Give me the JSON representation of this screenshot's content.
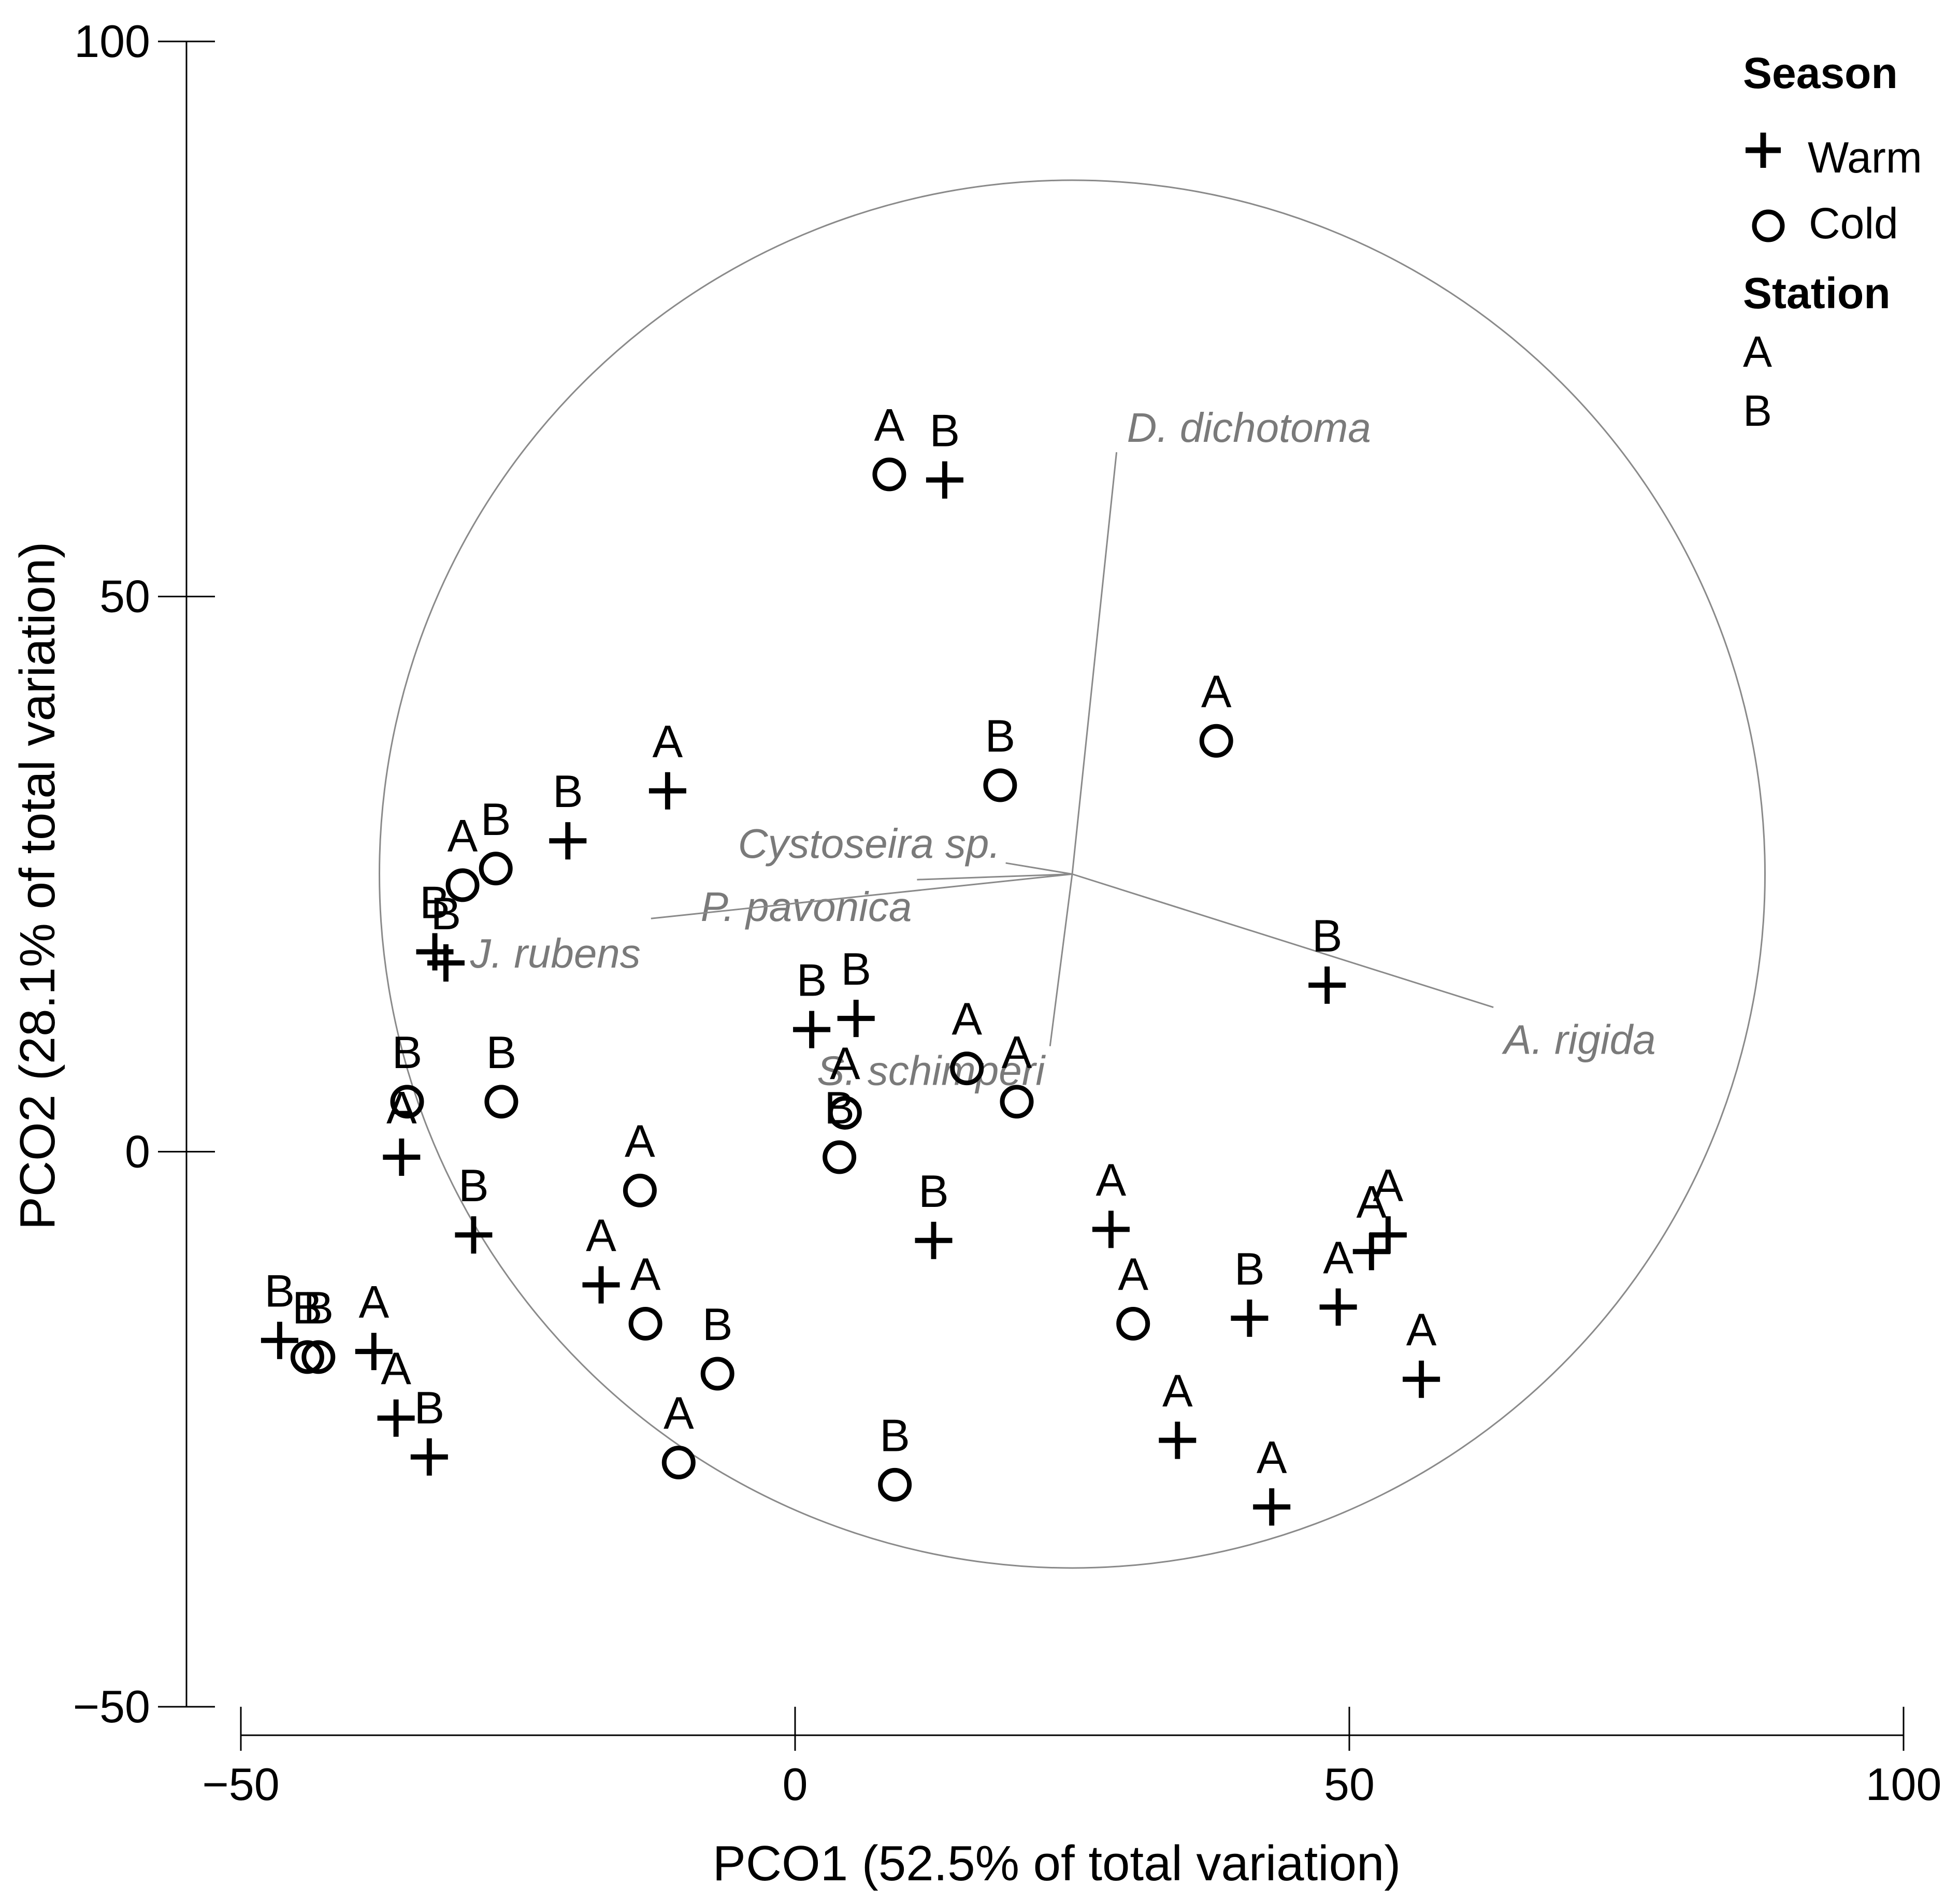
{
  "chart_data": {
    "type": "scatter",
    "title": "",
    "xlabel": "PCO1 (52.5% of total variation)",
    "ylabel": "PCO2 (28.1% of total variation)",
    "xlim": [
      -50,
      100
    ],
    "ylim": [
      -50,
      100
    ],
    "xticks": [
      -50,
      0,
      50,
      100
    ],
    "yticks": [
      -50,
      0,
      50,
      100
    ],
    "xtick_labels": [
      "−50",
      "0",
      "50",
      "100"
    ],
    "ytick_labels": [
      "−50",
      "0",
      "50",
      "100"
    ],
    "grid": false,
    "legend": {
      "position": "top-right",
      "season_title": "Season",
      "station_title": "Station",
      "season_items": [
        {
          "symbol": "plus",
          "label": "Warm"
        },
        {
          "symbol": "circle",
          "label": "Cold"
        }
      ],
      "station_items": [
        "A",
        "B"
      ]
    },
    "correlation_circle": {
      "center": [
        25,
        25
      ],
      "radius": 62.5
    },
    "vectors": [
      {
        "name": "D. dichotoma",
        "end": [
          29,
          63
        ]
      },
      {
        "name": "Cystoseira sp.",
        "end": [
          19,
          26
        ]
      },
      {
        "name": "P. pavonica",
        "end": [
          11,
          24.5
        ]
      },
      {
        "name": "J. rubens",
        "end": [
          -13,
          21
        ]
      },
      {
        "name": "A. rigida",
        "end": [
          63,
          13
        ]
      },
      {
        "name": "S. schimperi",
        "end": [
          23,
          9.5
        ]
      }
    ],
    "series": [
      {
        "name": "Warm",
        "marker": "plus",
        "points": [
          {
            "x": 13.5,
            "y": 60.5,
            "label": "B"
          },
          {
            "x": -11.5,
            "y": 32.5,
            "label": "A"
          },
          {
            "x": -20.5,
            "y": 28,
            "label": "B"
          },
          {
            "x": -32.5,
            "y": 18,
            "label": "B"
          },
          {
            "x": -31.5,
            "y": 17,
            "label": "B"
          },
          {
            "x": 1.5,
            "y": 11,
            "label": "B"
          },
          {
            "x": 5.5,
            "y": 12,
            "label": "B"
          },
          {
            "x": 48,
            "y": 15,
            "label": "B"
          },
          {
            "x": -35.5,
            "y": -0.5,
            "label": "A"
          },
          {
            "x": -29,
            "y": -7.5,
            "label": "B"
          },
          {
            "x": 12.5,
            "y": -8,
            "label": "B"
          },
          {
            "x": 28.5,
            "y": -7,
            "label": "A"
          },
          {
            "x": -17.5,
            "y": -12,
            "label": "A"
          },
          {
            "x": 41,
            "y": -15,
            "label": "B"
          },
          {
            "x": 49,
            "y": -14,
            "label": "A"
          },
          {
            "x": 52,
            "y": -9,
            "label": "A"
          },
          {
            "x": 53.5,
            "y": -7.5,
            "label": "A"
          },
          {
            "x": -46.5,
            "y": -17,
            "label": "B"
          },
          {
            "x": -38,
            "y": -18,
            "label": "A"
          },
          {
            "x": -36,
            "y": -24,
            "label": "A"
          },
          {
            "x": -33,
            "y": -27.5,
            "label": "B"
          },
          {
            "x": 56.5,
            "y": -20.5,
            "label": "A"
          },
          {
            "x": 34.5,
            "y": -26,
            "label": "A"
          },
          {
            "x": 43,
            "y": -32,
            "label": "A"
          }
        ]
      },
      {
        "name": "Cold",
        "marker": "circle",
        "points": [
          {
            "x": 8.5,
            "y": 61,
            "label": "A"
          },
          {
            "x": 38,
            "y": 37,
            "label": "A"
          },
          {
            "x": 18.5,
            "y": 33,
            "label": "B"
          },
          {
            "x": -30,
            "y": 24,
            "label": "A"
          },
          {
            "x": -27,
            "y": 25.5,
            "label": "B"
          },
          {
            "x": -35,
            "y": 4.5,
            "label": "B"
          },
          {
            "x": -26.5,
            "y": 4.5,
            "label": "B"
          },
          {
            "x": 15.5,
            "y": 7.5,
            "label": "A"
          },
          {
            "x": 20,
            "y": 4.5,
            "label": "A"
          },
          {
            "x": 4.5,
            "y": 3.5,
            "label": "A"
          },
          {
            "x": 4,
            "y": -0.5,
            "label": "B"
          },
          {
            "x": -14,
            "y": -3.5,
            "label": "A"
          },
          {
            "x": -13.5,
            "y": -15.5,
            "label": "A"
          },
          {
            "x": 30.5,
            "y": -15.5,
            "label": "A"
          },
          {
            "x": -7,
            "y": -20,
            "label": "B"
          },
          {
            "x": -44,
            "y": -18.5,
            "label": "B"
          },
          {
            "x": -43,
            "y": -18.5,
            "label": "B"
          },
          {
            "x": -10.5,
            "y": -28,
            "label": "A"
          },
          {
            "x": 9,
            "y": -30,
            "label": "B"
          }
        ]
      }
    ]
  }
}
